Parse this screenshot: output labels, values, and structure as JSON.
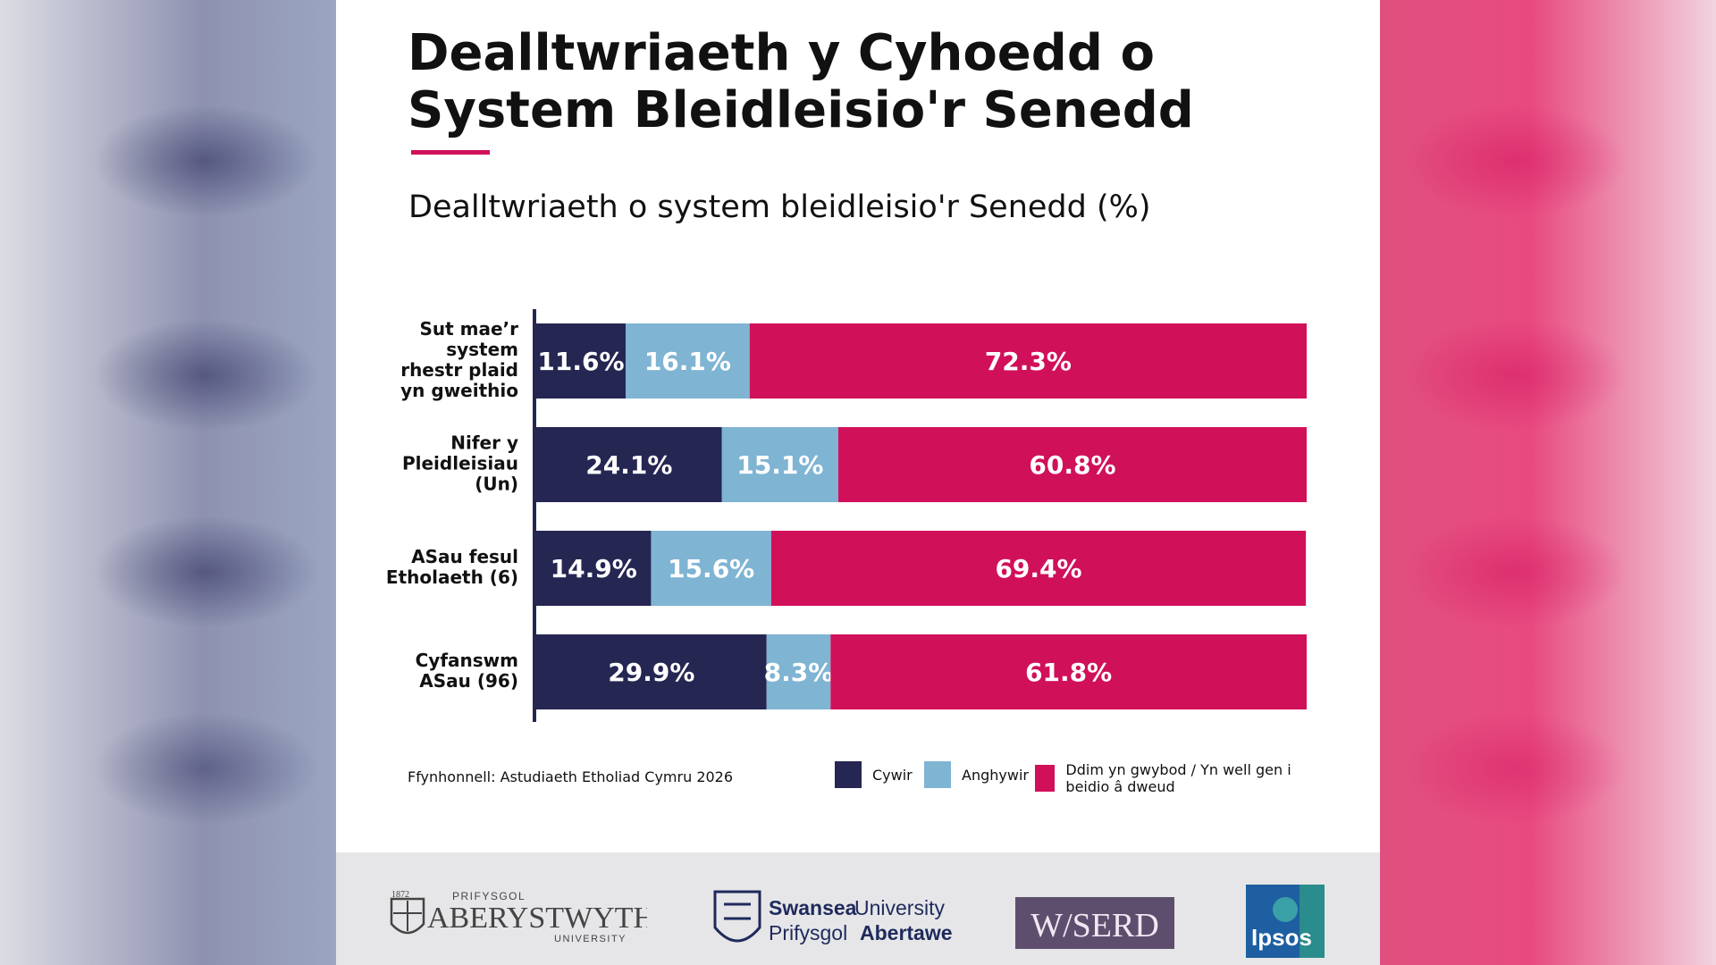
{
  "title": "Dealltwriaeth y Cyhoedd o System Bleidleisio'r Senedd",
  "subtitle": "Dealltwriaeth o system bleidleisio'r Senedd (%)",
  "source": "Ffynhonnell: Astudiaeth Etholiad Cymru 2026",
  "colors": {
    "correct": "#252652",
    "incorrect": "#7fb4d3",
    "dont_know": "#d1105a",
    "accent_line": "#d0105a"
  },
  "chart_data": {
    "type": "bar",
    "orientation": "horizontal",
    "stacked": true,
    "categories": [
      [
        "Sut mae’r",
        "system",
        "rhestr plaid",
        "yn gweithio"
      ],
      [
        "Nifer y",
        "Pleidleisiau",
        "(Un)"
      ],
      [
        "ASau fesul",
        "Etholaeth (6)"
      ],
      [
        "Cyfanswm",
        "ASau (96)"
      ]
    ],
    "series": [
      {
        "name": "Cywir",
        "values": [
          11.6,
          24.1,
          14.9,
          29.9
        ]
      },
      {
        "name": "Anghywir",
        "values": [
          16.1,
          15.1,
          15.6,
          8.3
        ]
      },
      {
        "name": "Ddim yn gwybod / Yn well gen i beidio â dweud",
        "values": [
          72.3,
          60.8,
          69.4,
          61.8
        ]
      }
    ],
    "value_labels": [
      [
        "11.6%",
        "24.1%",
        "14.9%",
        "29.9%"
      ],
      [
        "16.1%",
        "15.1%",
        "15.6%",
        "8.3%"
      ],
      [
        "72.3%",
        "60.8%",
        "69.4%",
        "61.8%"
      ]
    ],
    "xlim": [
      0,
      100
    ],
    "grid": false,
    "legend_position": "bottom"
  },
  "logos": {
    "aberystwyth": {
      "year": "1872",
      "top": "PRIFYSGOL",
      "name": "ABERYSTWYTH",
      "bottom": "UNIVERSITY"
    },
    "swansea": {
      "line1a": "Swansea",
      "line1b": "University",
      "line2a": "Prifysgol",
      "line2b": "Abertawe"
    },
    "wiserd": {
      "text": "W/SERD"
    },
    "ipsos": {
      "text": "Ipsos"
    }
  }
}
